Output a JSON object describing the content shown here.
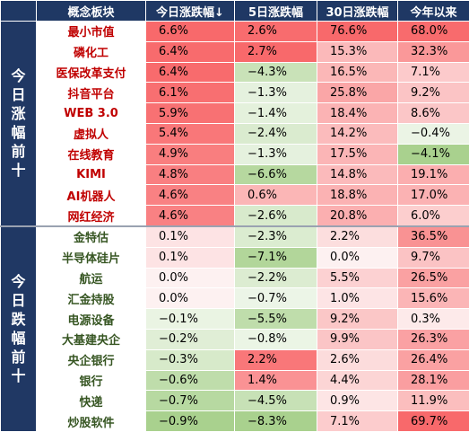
{
  "header": {
    "col_category": "概念板块",
    "col_today": "今日涨跌幅",
    "sort_arrow": "↓",
    "col_5d": "5日涨跌幅",
    "col_30d": "30日涨跌幅",
    "col_ytd": "今年以来"
  },
  "groups": [
    {
      "label_chars": [
        "今",
        "日",
        "涨",
        "幅",
        "前",
        "十"
      ],
      "rows": [
        {
          "name": "最小市值",
          "today": "6.6%",
          "d5": "2.6%",
          "d30": "76.6%",
          "ytd": "68.0%"
        },
        {
          "name": "磷化工",
          "today": "6.4%",
          "d5": "2.7%",
          "d30": "15.3%",
          "ytd": "32.3%"
        },
        {
          "name": "医保改革支付",
          "today": "6.4%",
          "d5": "−4.3%",
          "d30": "16.5%",
          "ytd": "7.1%"
        },
        {
          "name": "抖音平台",
          "today": "6.1%",
          "d5": "−1.3%",
          "d30": "25.8%",
          "ytd": "9.2%"
        },
        {
          "name": "WEB 3.0",
          "today": "5.9%",
          "d5": "−1.4%",
          "d30": "18.4%",
          "ytd": "8.6%"
        },
        {
          "name": "虚拟人",
          "today": "5.4%",
          "d5": "−2.4%",
          "d30": "14.2%",
          "ytd": "−0.4%"
        },
        {
          "name": "在线教育",
          "today": "4.9%",
          "d5": "−1.3%",
          "d30": "17.5%",
          "ytd": "−4.1%"
        },
        {
          "name": "KIMI",
          "today": "4.8%",
          "d5": "−6.6%",
          "d30": "14.8%",
          "ytd": "19.1%"
        },
        {
          "name": "AI机器人",
          "today": "4.6%",
          "d5": "0.6%",
          "d30": "18.8%",
          "ytd": "17.0%"
        },
        {
          "name": "网红经济",
          "today": "4.6%",
          "d5": "−2.6%",
          "d30": "20.8%",
          "ytd": "6.0%"
        }
      ]
    },
    {
      "label_chars": [
        "今",
        "日",
        "跌",
        "幅",
        "前",
        "十"
      ],
      "rows": [
        {
          "name": "金特估",
          "today": "0.1%",
          "d5": "−2.3%",
          "d30": "2.2%",
          "ytd": "36.5%"
        },
        {
          "name": "半导体硅片",
          "today": "0.1%",
          "d5": "−7.1%",
          "d30": "0.0%",
          "ytd": "9.7%"
        },
        {
          "name": "航运",
          "today": "0.0%",
          "d5": "−2.2%",
          "d30": "5.5%",
          "ytd": "26.5%"
        },
        {
          "name": "汇金持股",
          "today": "0.0%",
          "d5": "−0.7%",
          "d30": "1.0%",
          "ytd": "15.6%"
        },
        {
          "name": "电源设备",
          "today": "−0.1%",
          "d5": "−5.5%",
          "d30": "9.2%",
          "ytd": "0.3%"
        },
        {
          "name": "大基建央企",
          "today": "−0.2%",
          "d5": "−0.8%",
          "d30": "9.9%",
          "ytd": "26.3%"
        },
        {
          "name": "央企银行",
          "today": "−0.3%",
          "d5": "2.2%",
          "d30": "2.6%",
          "ytd": "26.4%"
        },
        {
          "name": "银行",
          "today": "−0.6%",
          "d5": "1.4%",
          "d30": "4.4%",
          "ytd": "28.1%"
        },
        {
          "name": "快递",
          "today": "−0.7%",
          "d5": "−4.5%",
          "d30": "0.9%",
          "ytd": "11.9%"
        },
        {
          "name": "炒股软件",
          "today": "−0.9%",
          "d5": "−8.3%",
          "d30": "7.1%",
          "ytd": "69.7%"
        }
      ]
    }
  ],
  "colors": {
    "header_bg": "#1f3864",
    "side_bg": "#203864",
    "top_name": "#c00000",
    "bottom_name": "#375623"
  }
}
